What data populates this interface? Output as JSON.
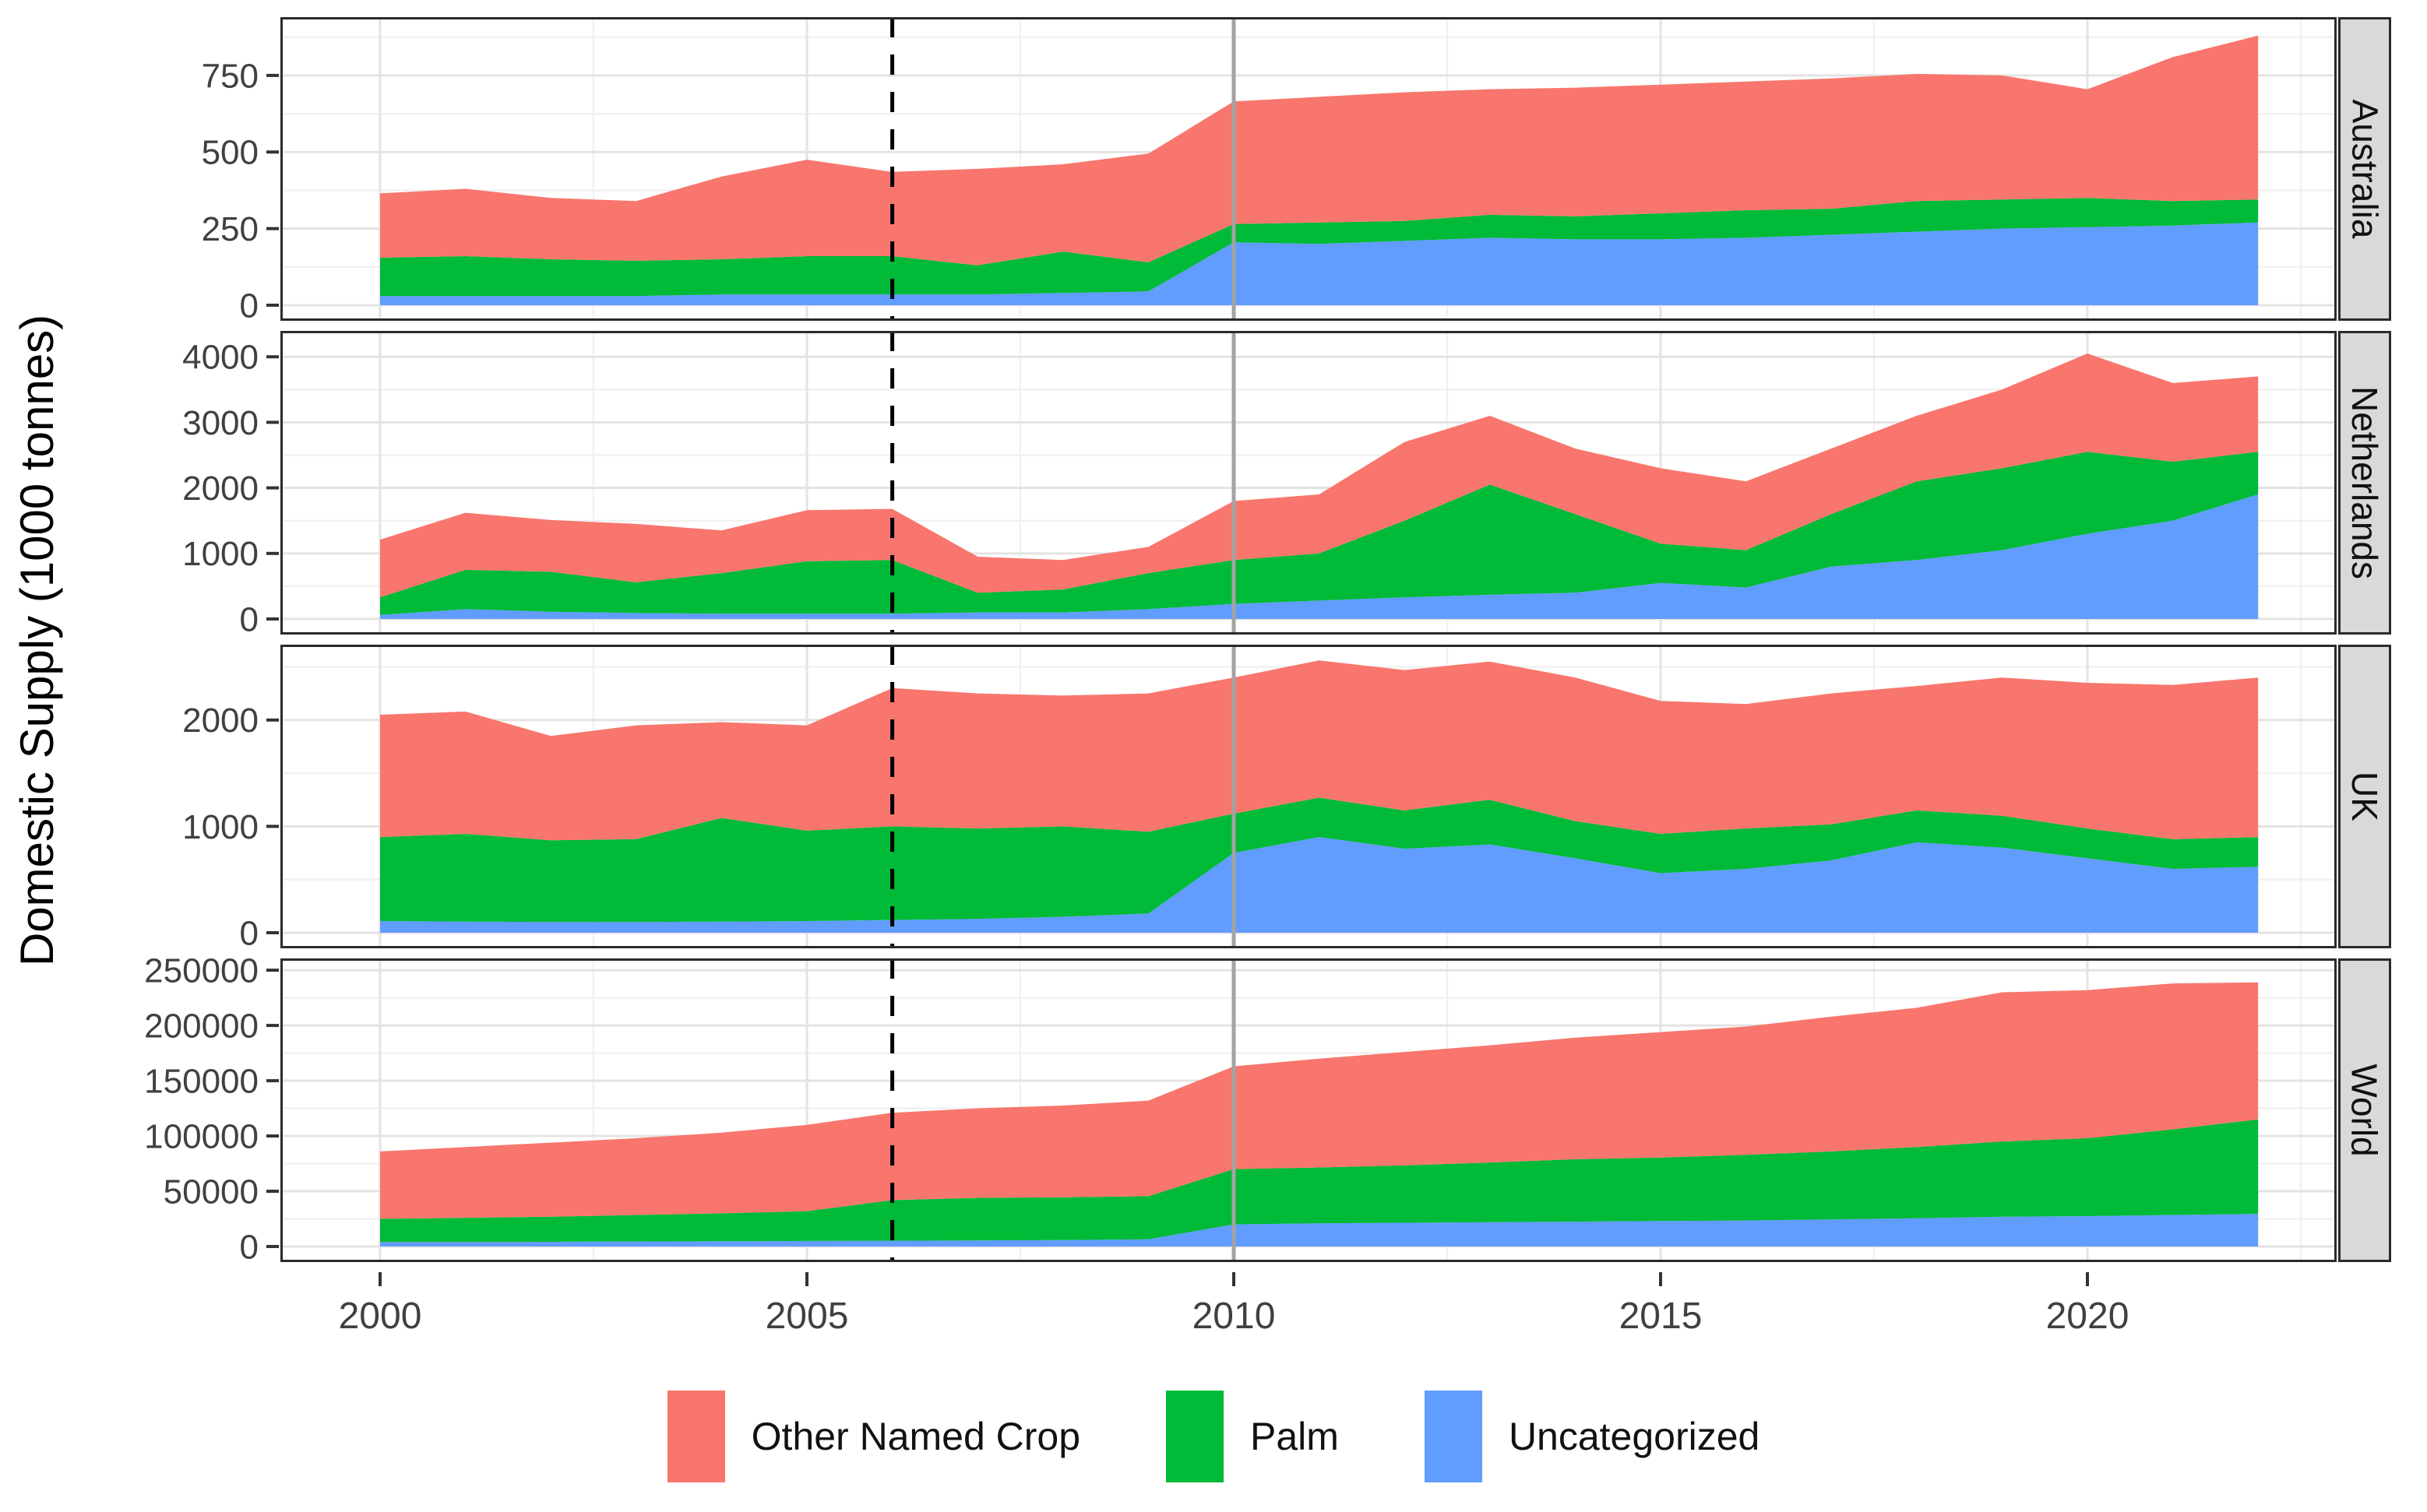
{
  "y_axis_title": "Domestic Supply (1000 tonnes)",
  "legend": {
    "items": [
      {
        "label": "Other Named Crop",
        "color": "#F8766D"
      },
      {
        "label": "Palm",
        "color": "#00BA38"
      },
      {
        "label": "Uncategorized",
        "color": "#619CFF"
      }
    ]
  },
  "chart_data": {
    "type": "area",
    "stacked": true,
    "title": "",
    "xlabel": "",
    "ylabel": "Domestic Supply (1000 tonnes)",
    "x": [
      2000,
      2001,
      2002,
      2003,
      2004,
      2005,
      2006,
      2007,
      2008,
      2009,
      2010,
      2011,
      2012,
      2013,
      2014,
      2015,
      2016,
      2017,
      2018,
      2019,
      2020,
      2021,
      2022
    ],
    "x_ticks": [
      2000,
      2005,
      2010,
      2015,
      2020
    ],
    "x_minor_ticks": [
      2002.5,
      2007.5,
      2012.5,
      2017.5,
      2022.5
    ],
    "series_order_bottom_to_top": [
      "Uncategorized",
      "Palm",
      "Other Named Crop"
    ],
    "colors": {
      "Other Named Crop": "#F8766D",
      "Palm": "#00BA38",
      "Uncategorized": "#619CFF"
    },
    "reference_lines": [
      {
        "x": 2006,
        "style": "dashed",
        "color": "#000000"
      },
      {
        "x": 2010,
        "style": "solid",
        "color": "#A3A3A3"
      }
    ],
    "facets": [
      {
        "label": "Australia",
        "ylim": [
          0,
          920
        ],
        "y_ticks": [
          0,
          250,
          500,
          750
        ],
        "y_minor_ticks": [
          125,
          375,
          625,
          875
        ],
        "series": {
          "Uncategorized": [
            30,
            30,
            30,
            30,
            35,
            35,
            35,
            35,
            40,
            45,
            205,
            200,
            210,
            220,
            215,
            215,
            220,
            230,
            240,
            250,
            255,
            260,
            270
          ],
          "Palm": [
            125,
            130,
            120,
            115,
            115,
            125,
            125,
            95,
            135,
            95,
            60,
            70,
            65,
            75,
            75,
            85,
            90,
            85,
            100,
            95,
            95,
            80,
            75
          ],
          "Other Named Crop": [
            210,
            220,
            200,
            195,
            270,
            315,
            275,
            315,
            285,
            355,
            400,
            410,
            420,
            410,
            420,
            420,
            420,
            425,
            415,
            405,
            355,
            470,
            535
          ]
        }
      },
      {
        "label": "Netherlands",
        "ylim": [
          0,
          4300
        ],
        "y_ticks": [
          0,
          1000,
          2000,
          3000,
          4000
        ],
        "y_minor_ticks": [
          500,
          1500,
          2500,
          3500
        ],
        "series": {
          "Uncategorized": [
            60,
            150,
            110,
            90,
            80,
            80,
            80,
            100,
            100,
            150,
            230,
            280,
            330,
            370,
            400,
            550,
            480,
            800,
            900,
            1050,
            1300,
            1500,
            1900
          ],
          "Palm": [
            270,
            600,
            610,
            470,
            620,
            800,
            820,
            300,
            350,
            550,
            670,
            720,
            1170,
            1680,
            1200,
            600,
            570,
            800,
            1200,
            1250,
            1250,
            900,
            650
          ],
          "Other Named Crop": [
            880,
            870,
            790,
            890,
            650,
            780,
            780,
            550,
            450,
            400,
            900,
            900,
            1200,
            1050,
            1000,
            1150,
            1050,
            1000,
            1000,
            1200,
            1500,
            1200,
            1150
          ]
        }
      },
      {
        "label": "UK",
        "ylim": [
          0,
          2650
        ],
        "y_ticks": [
          0,
          1000,
          2000
        ],
        "y_minor_ticks": [
          500,
          1500,
          2500
        ],
        "series": {
          "Uncategorized": [
            110,
            105,
            100,
            100,
            105,
            110,
            120,
            130,
            150,
            180,
            750,
            900,
            790,
            830,
            700,
            560,
            600,
            680,
            850,
            800,
            700,
            600,
            620
          ],
          "Palm": [
            790,
            825,
            770,
            780,
            975,
            850,
            880,
            850,
            850,
            770,
            370,
            370,
            360,
            420,
            350,
            370,
            380,
            340,
            300,
            300,
            280,
            280,
            280
          ],
          "Other Named Crop": [
            1150,
            1150,
            980,
            1070,
            900,
            990,
            1300,
            1270,
            1230,
            1300,
            1280,
            1290,
            1320,
            1300,
            1350,
            1250,
            1170,
            1230,
            1170,
            1300,
            1370,
            1450,
            1500
          ]
        }
      },
      {
        "label": "World",
        "ylim": [
          0,
          255000
        ],
        "y_ticks": [
          0,
          50000,
          100000,
          150000,
          200000,
          250000
        ],
        "y_minor_ticks": [
          25000,
          75000,
          125000,
          175000,
          225000
        ],
        "series": {
          "Uncategorized": [
            4000,
            4000,
            4200,
            4500,
            4700,
            5000,
            5200,
            5500,
            5800,
            6500,
            20000,
            21000,
            21500,
            22000,
            22500,
            23000,
            23500,
            24500,
            25500,
            27000,
            27500,
            28500,
            29500
          ],
          "Palm": [
            21000,
            22000,
            22800,
            24000,
            25300,
            27000,
            36800,
            38500,
            38700,
            39000,
            50000,
            50500,
            52000,
            54000,
            56500,
            57500,
            59500,
            61500,
            64500,
            68000,
            70500,
            77500,
            85500
          ],
          "Other Named Crop": [
            61000,
            64000,
            67000,
            69500,
            73000,
            78000,
            79000,
            81000,
            83000,
            86500,
            93000,
            98500,
            102500,
            106000,
            110000,
            113500,
            116000,
            122000,
            126000,
            135000,
            134000,
            132000,
            124000
          ]
        }
      }
    ],
    "style": {
      "panel_bg": "#FFFFFF",
      "grid_major": "#E3E3E3",
      "grid_minor": "#F1F1F1",
      "panel_border": "#2b2b2b",
      "strip_bg": "#D9D9D9",
      "tick_text": "#404040",
      "legend_position": "bottom"
    }
  }
}
